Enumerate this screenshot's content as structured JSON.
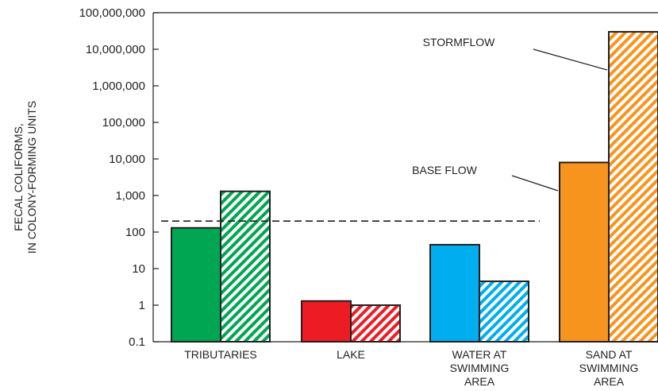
{
  "chart_data": {
    "type": "bar",
    "yscale": "log",
    "ylim": [
      0.1,
      100000000
    ],
    "ylabel": [
      "FECAL COLIFORMS,",
      "IN COLONY-FORMING UNITS"
    ],
    "yticks": [
      {
        "value": 0.1,
        "label": "0.1"
      },
      {
        "value": 1,
        "label": "1"
      },
      {
        "value": 10,
        "label": "10"
      },
      {
        "value": 100,
        "label": "100"
      },
      {
        "value": 1000,
        "label": "1,000"
      },
      {
        "value": 10000,
        "label": "10,000"
      },
      {
        "value": 100000,
        "label": "100,000"
      },
      {
        "value": 1000000,
        "label": "1,000,000"
      },
      {
        "value": 10000000,
        "label": "10,000,000"
      },
      {
        "value": 100000000,
        "label": "100,000,000"
      }
    ],
    "categories": [
      {
        "lines": [
          "TRIBUTARIES"
        ],
        "color": "#00a651"
      },
      {
        "lines": [
          "LAKE"
        ],
        "color": "#ed1c24"
      },
      {
        "lines": [
          "WATER AT",
          "SWIMMING",
          "AREA"
        ],
        "color": "#00aeef"
      },
      {
        "lines": [
          "SAND AT",
          "SWIMMING",
          "AREA"
        ],
        "color": "#f7941d"
      }
    ],
    "series": [
      {
        "key": "base",
        "fill": "solid",
        "values": [
          130,
          1.3,
          45,
          8000
        ]
      },
      {
        "key": "storm",
        "fill": "hatched",
        "values": [
          1300,
          1.0,
          4.5,
          30000000
        ]
      }
    ],
    "reference_line": {
      "value": 200,
      "style": "dashed"
    },
    "annotations": [
      {
        "key": "stormflow",
        "text": "STORMFLOW"
      },
      {
        "key": "baseflow",
        "text": "BASE FLOW"
      }
    ],
    "grid": false
  }
}
